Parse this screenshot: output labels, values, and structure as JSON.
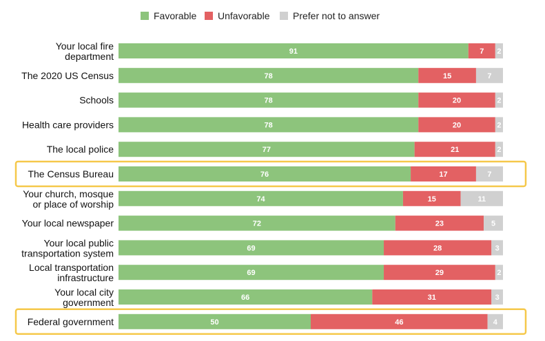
{
  "chart_data": {
    "type": "bar",
    "orientation": "horizontal",
    "stacked": true,
    "xlim": [
      0,
      100
    ],
    "grid": false,
    "legend_position": "top",
    "categories": [
      [
        "Your local fire",
        "department"
      ],
      [
        "The 2020 US Census"
      ],
      [
        "Schools"
      ],
      [
        "Health care providers"
      ],
      [
        "The local police"
      ],
      [
        "The Census Bureau"
      ],
      [
        "Your church, mosque",
        "or place of worship"
      ],
      [
        "Your local newspaper"
      ],
      [
        "Your local public",
        "transportation system"
      ],
      [
        "Local transportation",
        "infrastructure"
      ],
      [
        "Your local city",
        "government"
      ],
      [
        "Federal government"
      ]
    ],
    "series": [
      {
        "name": "Favorable",
        "color": "#8dc47c",
        "values": [
          91,
          78,
          78,
          78,
          77,
          76,
          74,
          72,
          69,
          69,
          66,
          50
        ]
      },
      {
        "name": "Unfavorable",
        "color": "#e36163",
        "values": [
          7,
          15,
          20,
          20,
          21,
          17,
          15,
          23,
          28,
          29,
          31,
          46
        ]
      },
      {
        "name": "Prefer not to answer",
        "color": "#d0d0d0",
        "values": [
          2,
          7,
          2,
          2,
          2,
          7,
          11,
          5,
          3,
          2,
          3,
          4
        ]
      }
    ],
    "highlighted_categories": [
      5,
      11
    ],
    "highlight_color": "#f5c84a"
  }
}
